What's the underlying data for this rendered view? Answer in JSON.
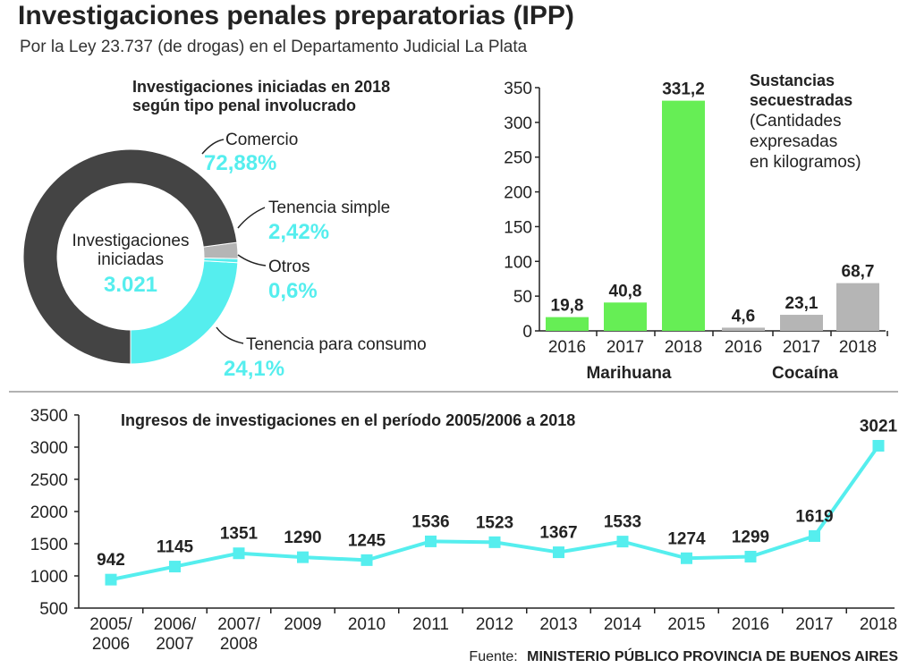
{
  "header": {
    "title": "Investigaciones penales preparatorias (IPP)",
    "subtitle": "Por la Ley 23.737 (de drogas) en el Departamento Judicial La Plata"
  },
  "colors": {
    "cyan": "#55eeee",
    "dark": "#444444",
    "gray": "#b5b5b5",
    "green": "#66ee55"
  },
  "chart_data": [
    {
      "type": "pie",
      "title_line1": "Investigaciones iniciadas en 2018",
      "title_line2": "según tipo penal involucrado",
      "center_line1": "Investigaciones",
      "center_line2": "iniciadas",
      "center_value": "3.021",
      "slices": [
        {
          "label": "Comercio",
          "value_text": "72,88%",
          "value": 72.88,
          "color": "#444444"
        },
        {
          "label": "Tenencia simple",
          "value_text": "2,42%",
          "value": 2.42,
          "color": "#b5b5b5"
        },
        {
          "label": "Otros",
          "value_text": "0,6%",
          "value": 0.6,
          "color": "#55eeee"
        },
        {
          "label": "Tenencia para consumo",
          "value_text": "24,1%",
          "value": 24.1,
          "color": "#55eeee"
        }
      ]
    },
    {
      "type": "bar",
      "title": "Sustancias secuestradas",
      "title_line1": "Sustancias",
      "title_line2": "secuestradas",
      "note_line1": "(Cantidades",
      "note_line2": "expresadas",
      "note_line3": "en kilogramos)",
      "ylim": [
        0,
        350
      ],
      "yticks": [
        0,
        50,
        100,
        150,
        200,
        250,
        300,
        350
      ],
      "groups": [
        {
          "name": "Marihuana",
          "categories": [
            "2016",
            "2017",
            "2018"
          ],
          "values": [
            19.8,
            40.8,
            331.2
          ],
          "labels": [
            "19,8",
            "40,8",
            "331,2"
          ],
          "color": "#66ee55"
        },
        {
          "name": "Cocaína",
          "categories": [
            "2016",
            "2017",
            "2018"
          ],
          "values": [
            4.6,
            23.1,
            68.7
          ],
          "labels": [
            "4,6",
            "23,1",
            "68,7"
          ],
          "color": "#b5b5b5"
        }
      ]
    },
    {
      "type": "line",
      "title": "Ingresos de investigaciones en el período 2005/2006 a 2018",
      "categories": [
        [
          "2005/",
          "2006"
        ],
        [
          "2006/",
          "2007"
        ],
        [
          "2007/",
          "2008"
        ],
        [
          "2009"
        ],
        [
          "2010"
        ],
        [
          "2011"
        ],
        [
          "2012"
        ],
        [
          "2013"
        ],
        [
          "2014"
        ],
        [
          "2015"
        ],
        [
          "2016"
        ],
        [
          "2017"
        ],
        [
          "2018"
        ]
      ],
      "values": [
        942,
        1145,
        1351,
        1290,
        1245,
        1536,
        1523,
        1367,
        1533,
        1274,
        1299,
        1619,
        3021
      ],
      "ylim": [
        500,
        3500
      ],
      "yticks": [
        500,
        1000,
        1500,
        2000,
        2500,
        3000,
        3500
      ],
      "color": "#55eeee"
    }
  ],
  "source": {
    "prefix": "Fuente:",
    "name": "MINISTERIO PÚBLICO PROVINCIA DE BUENOS AIRES"
  }
}
